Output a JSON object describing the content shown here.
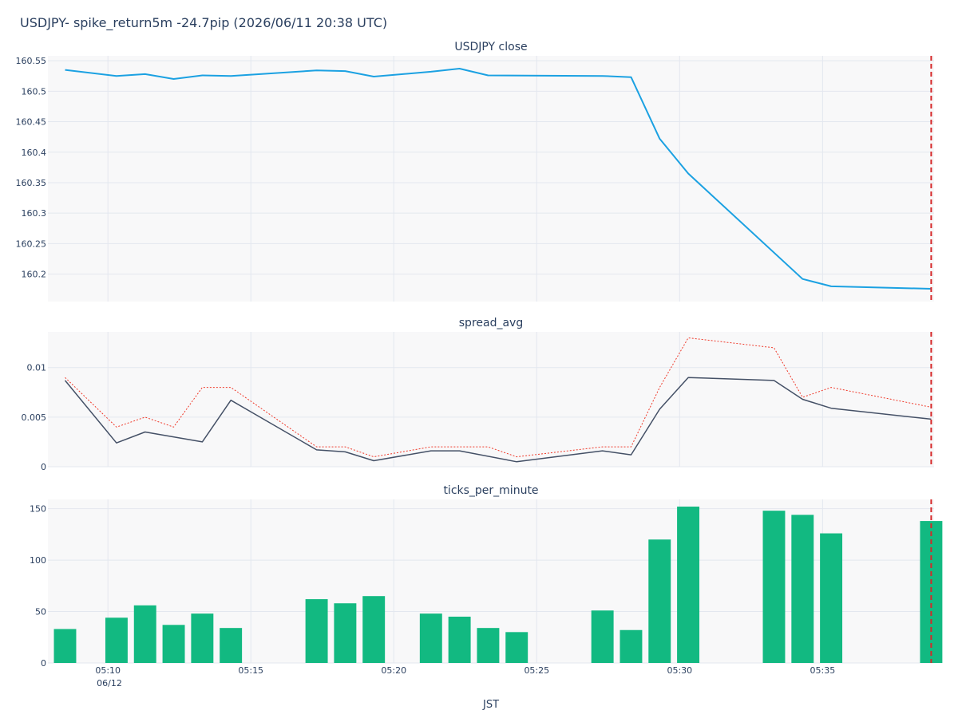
{
  "figure_title": "USDJPY- spike_return5m -24.7pip (2026/06/11 20:38 UTC)",
  "x_axis": {
    "label": "JST",
    "date_label": "06/12",
    "tick_labels": [
      "05:10",
      "05:15",
      "05:20",
      "05:25",
      "05:30",
      "05:35"
    ],
    "tick_minutes": [
      10,
      15,
      20,
      25,
      30,
      35
    ],
    "range_minutes": [
      7.9,
      38.9
    ]
  },
  "event_marker": {
    "minute": 38.8,
    "color": "#d62728",
    "style": "dashed"
  },
  "colors": {
    "plot_bg": "#f8f8f9",
    "grid": "#e3e7ef",
    "close_line": "#1ba1e2",
    "spread_line": "#445066",
    "spread_dotted": "#ef3a2b",
    "bars": "#12b981"
  },
  "chart_data": [
    {
      "type": "line",
      "title": "USDJPY close",
      "ylim": [
        160.155,
        160.558
      ],
      "yticks": [
        160.2,
        160.25,
        160.3,
        160.35,
        160.4,
        160.45,
        160.5,
        160.55
      ],
      "ytick_labels": [
        "160.2",
        "160.25",
        "160.3",
        "160.35",
        "160.4",
        "160.45",
        "160.5",
        "160.55"
      ],
      "series": [
        {
          "x": [
            8.5,
            10.3,
            11.3,
            12.3,
            13.3,
            14.3,
            17.3,
            18.3,
            19.3,
            21.3,
            22.3,
            23.3,
            27.3,
            28.3,
            29.3,
            30.3,
            34.3,
            35.3,
            38.8
          ],
          "y": [
            160.535,
            160.525,
            160.528,
            160.52,
            160.526,
            160.525,
            160.534,
            160.533,
            160.524,
            160.532,
            160.537,
            160.526,
            160.525,
            160.523,
            160.422,
            160.365,
            160.192,
            160.18,
            160.176
          ]
        }
      ]
    },
    {
      "type": "line",
      "title": "spread_avg",
      "ylim": [
        0,
        0.0136
      ],
      "yticks": [
        0,
        0.005,
        0.01
      ],
      "ytick_labels": [
        "0",
        "0.005",
        "0.01"
      ],
      "series": [
        {
          "style": "solid",
          "x": [
            8.5,
            10.3,
            11.3,
            13.3,
            14.3,
            17.3,
            18.3,
            19.3,
            21.3,
            22.3,
            24.3,
            27.3,
            28.3,
            29.3,
            30.3,
            33.3,
            34.3,
            35.3,
            38.8
          ],
          "y": [
            0.0087,
            0.0024,
            0.0035,
            0.0025,
            0.0067,
            0.0017,
            0.0015,
            0.0006,
            0.0016,
            0.0016,
            0.0005,
            0.0016,
            0.0012,
            0.0058,
            0.009,
            0.0087,
            0.0068,
            0.0059,
            0.0048
          ]
        },
        {
          "style": "dotted",
          "x": [
            8.5,
            10.3,
            11.3,
            12.3,
            13.3,
            14.3,
            17.3,
            18.3,
            19.3,
            21.3,
            22.3,
            23.3,
            24.3,
            27.3,
            28.3,
            29.3,
            30.3,
            33.3,
            34.3,
            35.3,
            38.8
          ],
          "y": [
            0.009,
            0.004,
            0.005,
            0.004,
            0.008,
            0.008,
            0.002,
            0.002,
            0.001,
            0.002,
            0.002,
            0.002,
            0.001,
            0.002,
            0.002,
            0.008,
            0.013,
            0.012,
            0.007,
            0.008,
            0.006
          ]
        }
      ]
    },
    {
      "type": "bar",
      "title": "ticks_per_minute",
      "ylim": [
        0,
        159
      ],
      "yticks": [
        0,
        50,
        100,
        150
      ],
      "ytick_labels": [
        "0",
        "50",
        "100",
        "150"
      ],
      "x": [
        8.5,
        10.3,
        11.3,
        12.3,
        13.3,
        14.3,
        17.3,
        18.3,
        19.3,
        21.3,
        22.3,
        23.3,
        24.3,
        27.3,
        28.3,
        29.3,
        30.3,
        33.3,
        34.3,
        35.3,
        38.8
      ],
      "values": [
        33,
        44,
        56,
        37,
        48,
        34,
        62,
        58,
        65,
        48,
        45,
        34,
        30,
        51,
        32,
        120,
        152,
        148,
        144,
        126,
        138
      ]
    }
  ]
}
